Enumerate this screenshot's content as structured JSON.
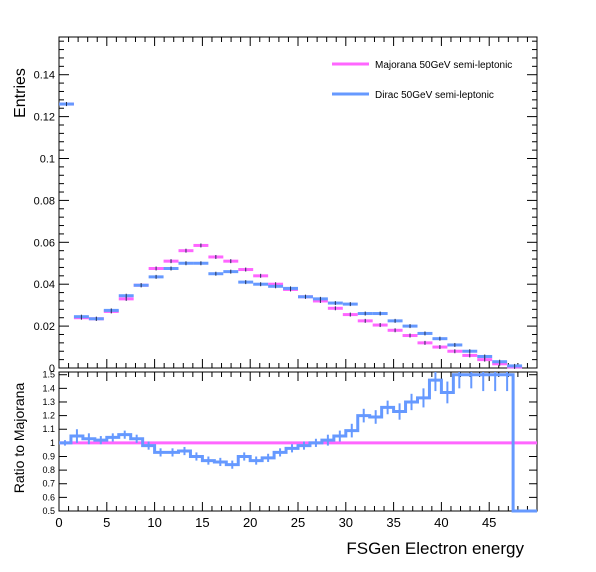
{
  "chart_data": [
    {
      "type": "histogram",
      "ylabel": "Entries",
      "xlim": [
        0,
        50
      ],
      "ylim": [
        0,
        0.158
      ],
      "y_ticks": [
        0,
        0.02,
        0.04,
        0.06,
        0.08,
        0.1,
        0.12,
        0.14
      ],
      "y_tick_labels": [
        "0",
        "0.02",
        "0.04",
        "0.06",
        "0.08",
        "0.1",
        "0.12",
        "0.14"
      ],
      "legend_position": "top-right",
      "bin_edges": [
        0,
        1.5625,
        3.125,
        4.6875,
        6.25,
        7.8125,
        9.375,
        10.9375,
        12.5,
        14.0625,
        15.625,
        17.1875,
        18.75,
        20.3125,
        21.875,
        23.4375,
        25,
        26.5625,
        28.125,
        29.6875,
        31.25,
        32.8125,
        34.375,
        35.9375,
        37.5,
        39.0625,
        40.625,
        42.1875,
        43.75,
        45.3125,
        46.875,
        48.4375,
        50
      ],
      "series": [
        {
          "name": "Majorana 50GeV semi-leptonic",
          "color": "#ff66ff",
          "values": [
            0.126,
            0.024,
            0.0235,
            0.027,
            0.033,
            0.0395,
            0.0475,
            0.051,
            0.056,
            0.0585,
            0.053,
            0.051,
            0.047,
            0.044,
            0.04,
            0.0375,
            0.034,
            0.032,
            0.0285,
            0.0255,
            0.0225,
            0.0205,
            0.018,
            0.0155,
            0.012,
            0.01,
            0.008,
            0.006,
            0.004,
            0.002,
            0.0005,
            0
          ]
        },
        {
          "name": "Dirac 50GeV semi-leptonic",
          "color": "#6699ff",
          "values": [
            0.126,
            0.0245,
            0.0235,
            0.0275,
            0.0345,
            0.0395,
            0.0435,
            0.0475,
            0.05,
            0.05,
            0.045,
            0.046,
            0.041,
            0.04,
            0.039,
            0.038,
            0.034,
            0.033,
            0.031,
            0.0305,
            0.026,
            0.026,
            0.0225,
            0.02,
            0.0165,
            0.014,
            0.011,
            0.008,
            0.0055,
            0.003,
            0.001,
            0
          ]
        }
      ]
    },
    {
      "type": "histogram",
      "xlabel": "FSGen Electron energy",
      "ylabel": "Ratio to Majorana",
      "xlim": [
        0,
        50
      ],
      "ylim": [
        0.5,
        1.52
      ],
      "x_ticks": [
        0,
        5,
        10,
        15,
        20,
        25,
        30,
        35,
        40,
        45
      ],
      "x_tick_labels": [
        "0",
        "5",
        "10",
        "15",
        "20",
        "25",
        "30",
        "35",
        "40",
        "45"
      ],
      "y_ticks": [
        0.5,
        0.6,
        0.7,
        0.8,
        0.9,
        1,
        1.1,
        1.2,
        1.3,
        1.4,
        1.5
      ],
      "y_tick_labels": [
        "0.5",
        "0.6",
        "0.7",
        "0.8",
        "0.9",
        "1",
        "1.1",
        "1.2",
        "1.3",
        "1.4",
        "1.5"
      ],
      "reference_line": {
        "y": 1,
        "color": "#ff66ff"
      },
      "ratio": {
        "color": "#6699ff",
        "bin_edges": [
          0,
          1.25,
          2.5,
          3.75,
          5,
          6.25,
          7.5,
          8.75,
          10,
          11.25,
          12.5,
          13.75,
          15,
          16.25,
          17.5,
          18.75,
          20,
          21.25,
          22.5,
          23.75,
          25,
          26.25,
          27.5,
          28.75,
          30,
          31.25,
          32.5,
          33.75,
          35,
          36.25,
          37.5,
          38.75,
          40,
          41.25,
          42.5,
          43.75,
          45,
          46.25,
          47.5,
          48.75,
          50
        ],
        "values": [
          1.0,
          1.05,
          1.03,
          1.02,
          1.04,
          1.06,
          1.03,
          0.98,
          0.93,
          0.93,
          0.94,
          0.9,
          0.87,
          0.86,
          0.84,
          0.9,
          0.87,
          0.89,
          0.93,
          0.96,
          0.98,
          1.0,
          1.02,
          1.05,
          1.09,
          1.2,
          1.19,
          1.26,
          1.23,
          1.3,
          1.33,
          1.46,
          1.37,
          1.5,
          1.5,
          1.5,
          1.5,
          1.5,
          0.5,
          0.5
        ],
        "errors": [
          0.02,
          0.05,
          0.04,
          0.03,
          0.03,
          0.03,
          0.03,
          0.03,
          0.03,
          0.03,
          0.03,
          0.03,
          0.03,
          0.03,
          0.03,
          0.03,
          0.03,
          0.03,
          0.03,
          0.03,
          0.03,
          0.03,
          0.04,
          0.04,
          0.05,
          0.05,
          0.05,
          0.05,
          0.06,
          0.06,
          0.07,
          0.08,
          0.08,
          0.1,
          0.1,
          0.12,
          0.12,
          0.12,
          0,
          0
        ]
      }
    }
  ]
}
